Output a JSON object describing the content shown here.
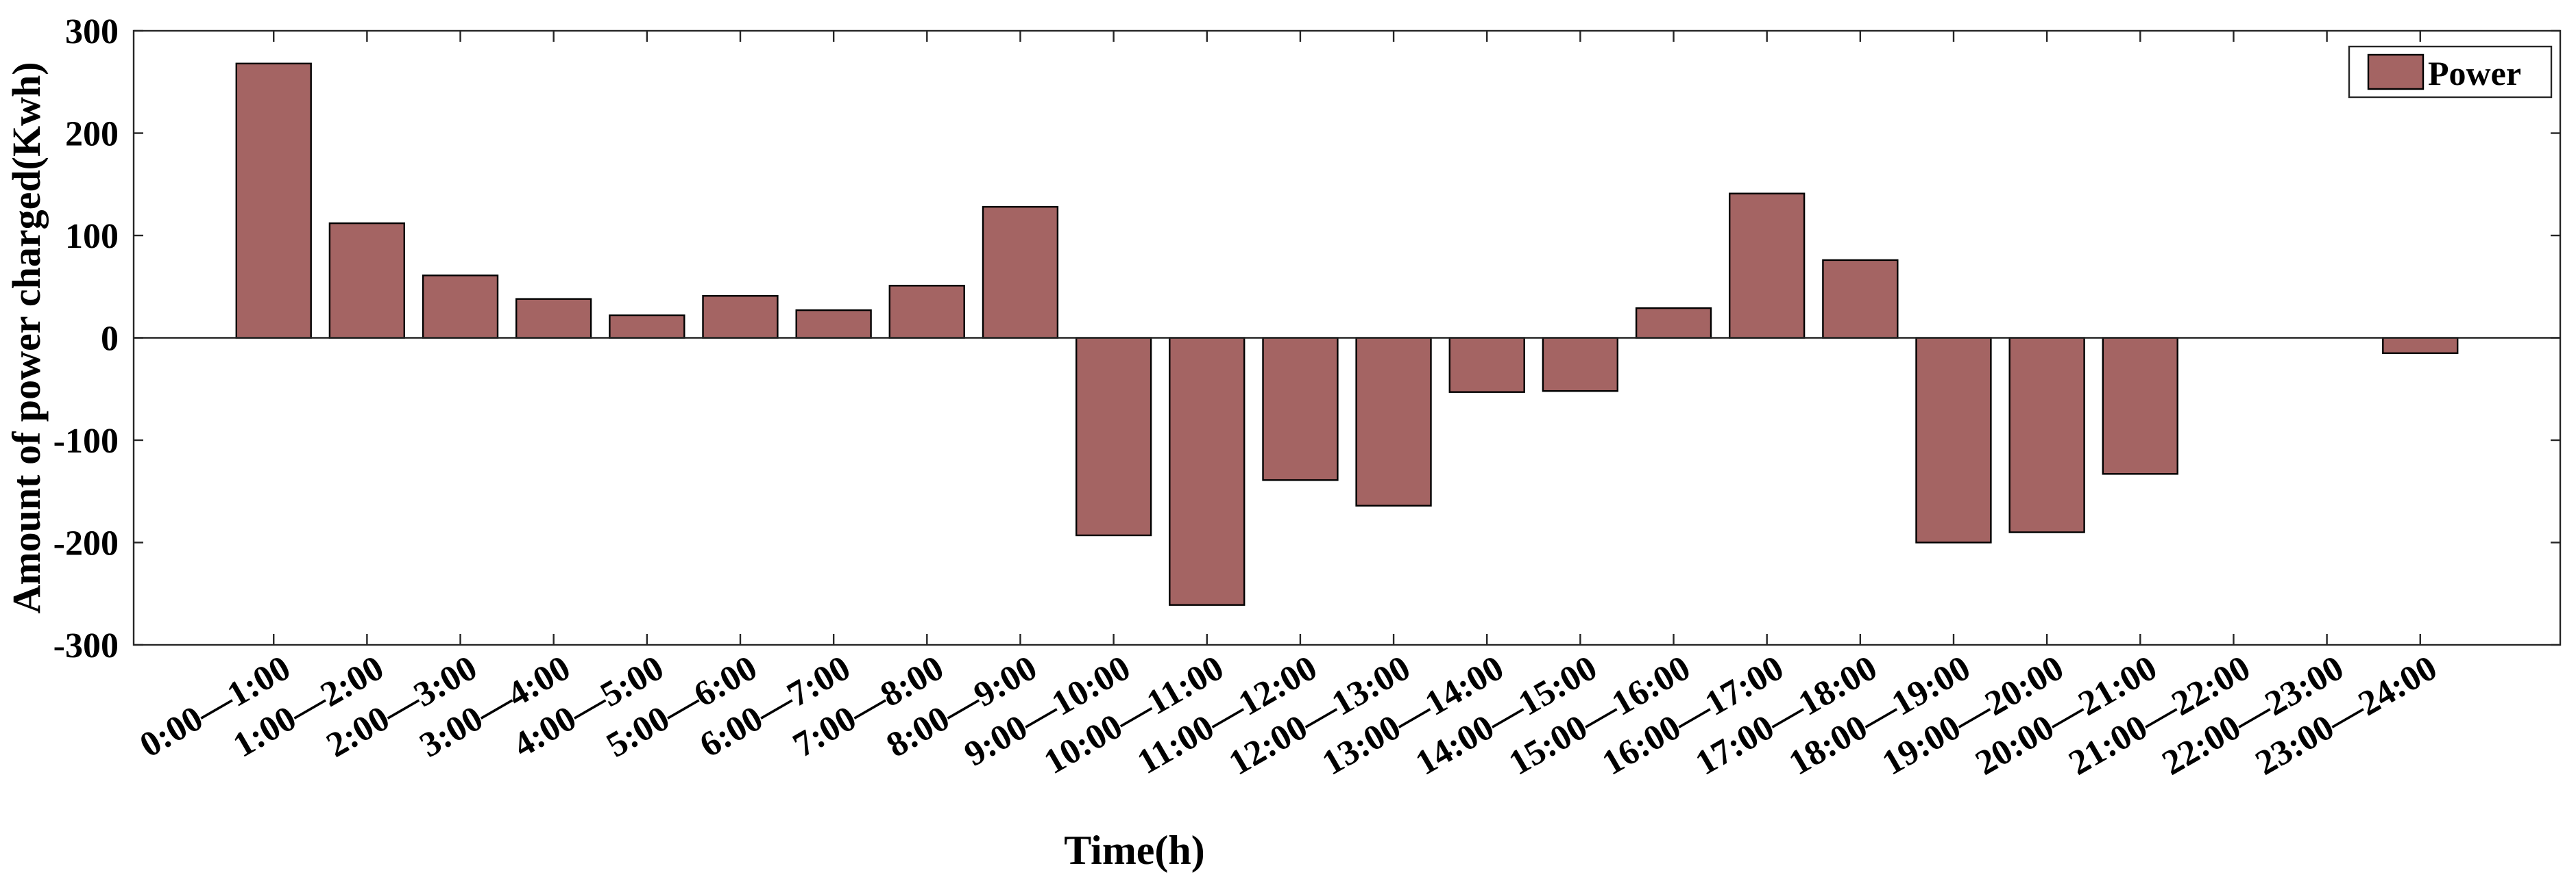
{
  "chart_data": {
    "type": "bar",
    "categories": [
      "0:00—1:00",
      "1:00—2:00",
      "2:00—3:00",
      "3:00—4:00",
      "4:00—5:00",
      "5:00—6:00",
      "6:00—7:00",
      "7:00—8:00",
      "8:00—9:00",
      "9:00—10:00",
      "10:00—11:00",
      "11:00—12:00",
      "12:00—13:00",
      "13:00—14:00",
      "14:00—15:00",
      "15:00—16:00",
      "16:00—17:00",
      "17:00—18:00",
      "18:00—19:00",
      "19:00—20:00",
      "20:00—21:00",
      "21:00—22:00",
      "22:00—23:00",
      "23:00—24:00"
    ],
    "series": [
      {
        "name": "Power",
        "color": "#a46463",
        "values": [
          268,
          112,
          61,
          38,
          22,
          41,
          27,
          51,
          128,
          -193,
          -261,
          -139,
          -164,
          -53,
          -52,
          29,
          141,
          76,
          -200,
          -190,
          -133,
          0,
          0,
          -15
        ]
      }
    ],
    "xlabel": "Time(h)",
    "ylabel": "Amount of power charged(Kwh)",
    "ylim": [
      -300,
      300
    ],
    "yticks": [
      -300,
      -200,
      -100,
      0,
      100,
      200,
      300
    ],
    "ytick_labels": [
      "-300",
      "-200",
      "-100",
      "0",
      "100",
      "200",
      "300"
    ],
    "grid": false,
    "legend_position": "top-right"
  }
}
